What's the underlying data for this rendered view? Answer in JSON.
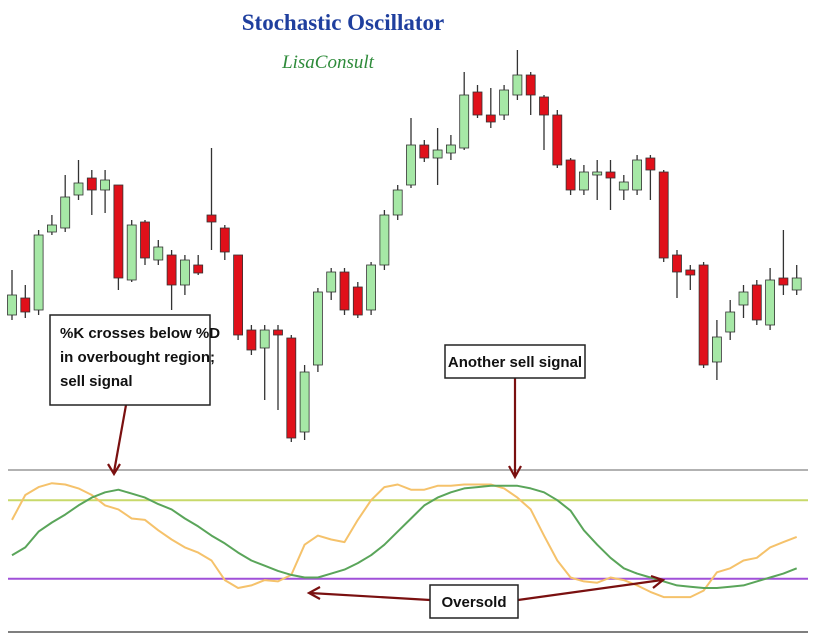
{
  "chart_data": [
    {
      "type": "candlestick",
      "title": "Stochastic Oscillator",
      "subtitle": "LisaConsult",
      "ylim": [
        0,
        410
      ],
      "up_color": "#a6e8a6",
      "down_color": "#e0101a",
      "open": [
        135,
        152,
        140,
        218,
        222,
        255,
        272,
        260,
        265,
        170,
        228,
        190,
        195,
        165,
        185,
        235,
        222,
        195,
        120,
        102,
        120,
        112,
        18,
        85,
        158,
        178,
        163,
        140,
        185,
        235,
        265,
        305,
        292,
        297,
        302,
        358,
        335,
        335,
        355,
        375,
        353,
        335,
        290,
        260,
        275,
        278,
        260,
        260,
        292,
        278,
        195,
        180,
        185,
        88,
        118,
        145,
        165,
        125,
        172,
        160
      ],
      "high": [
        180,
        165,
        220,
        235,
        275,
        290,
        280,
        280,
        265,
        230,
        230,
        210,
        200,
        195,
        195,
        302,
        225,
        195,
        125,
        125,
        125,
        115,
        85,
        162,
        182,
        182,
        168,
        188,
        240,
        265,
        332,
        310,
        322,
        315,
        378,
        365,
        362,
        365,
        400,
        378,
        355,
        340,
        292,
        285,
        290,
        290,
        275,
        295,
        295,
        280,
        200,
        185,
        188,
        130,
        150,
        165,
        170,
        182,
        220,
        185
      ],
      "low": [
        130,
        132,
        135,
        215,
        218,
        250,
        235,
        237,
        160,
        168,
        185,
        185,
        140,
        155,
        175,
        200,
        190,
        110,
        95,
        50,
        40,
        8,
        10,
        78,
        150,
        135,
        132,
        135,
        180,
        230,
        262,
        288,
        265,
        290,
        300,
        332,
        322,
        330,
        350,
        335,
        300,
        282,
        255,
        255,
        250,
        240,
        250,
        255,
        250,
        188,
        152,
        160,
        82,
        70,
        110,
        132,
        125,
        120,
        155,
        155
      ],
      "close": [
        155,
        138,
        215,
        225,
        253,
        267,
        260,
        270,
        172,
        225,
        192,
        203,
        165,
        190,
        177,
        228,
        198,
        115,
        100,
        120,
        115,
        12,
        78,
        158,
        178,
        140,
        135,
        185,
        235,
        260,
        305,
        292,
        300,
        305,
        355,
        335,
        328,
        360,
        375,
        355,
        335,
        285,
        260,
        278,
        278,
        272,
        268,
        290,
        280,
        192,
        178,
        175,
        85,
        113,
        138,
        158,
        130,
        170,
        165,
        172
      ],
      "annotations": [
        {
          "lines": [
            "%K crosses below %D",
            "in overbought region;",
            "sell signal"
          ]
        },
        {
          "lines": [
            "Another sell signal"
          ]
        },
        {
          "lines": [
            "Oversold"
          ]
        }
      ]
    },
    {
      "type": "line",
      "ylim": [
        0,
        100
      ],
      "levels": [
        {
          "value": 80,
          "color": "#c8d96a"
        },
        {
          "value": 20,
          "color": "#a050d8"
        }
      ],
      "series": [
        {
          "color": "#f5c26b",
          "values": [
            65,
            84,
            90,
            93,
            92,
            89,
            84,
            76,
            73,
            66,
            65,
            57,
            50,
            44,
            40,
            34,
            19,
            13,
            15,
            19,
            18,
            23,
            46,
            53,
            50,
            48,
            65,
            80,
            90,
            92,
            88,
            88,
            91,
            91,
            92,
            92,
            92,
            89,
            82,
            73,
            53,
            34,
            21,
            18,
            17,
            21,
            19,
            15,
            10,
            6,
            6,
            6,
            11,
            25,
            28,
            34,
            36,
            44,
            48,
            52
          ]
        },
        {
          "color": "#5aa55a",
          "values": [
            38,
            44,
            56,
            63,
            69,
            76,
            82,
            86,
            88,
            85,
            82,
            77,
            73,
            66,
            60,
            53,
            47,
            40,
            34,
            30,
            26,
            23,
            21,
            21,
            24,
            27,
            32,
            38,
            46,
            56,
            66,
            76,
            82,
            86,
            89,
            90,
            91,
            91,
            91,
            89,
            86,
            80,
            72,
            57,
            46,
            36,
            28,
            24,
            21,
            18,
            15,
            14,
            13,
            13,
            14,
            15,
            18,
            21,
            24,
            28
          ]
        }
      ]
    }
  ]
}
